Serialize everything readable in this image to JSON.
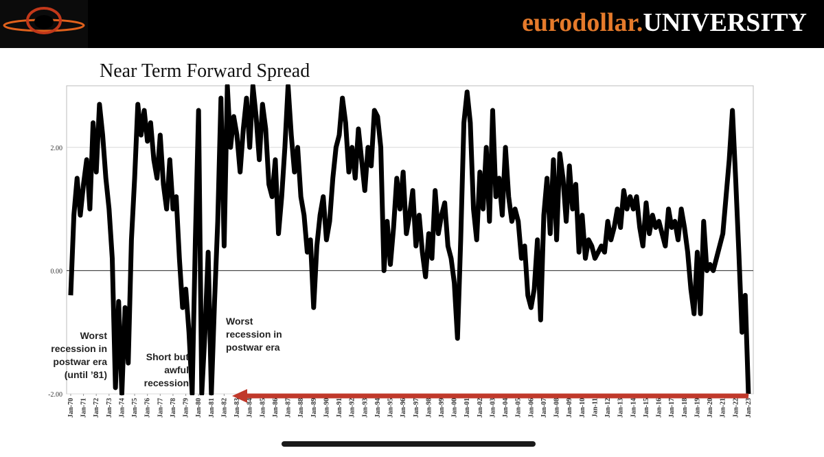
{
  "header": {
    "brand_prefix": "eurodollar.",
    "brand_suffix": "UNIVERSITY"
  },
  "chart_data": {
    "type": "line",
    "title": "Near Term Forward Spread",
    "color": "#000000",
    "grid": true,
    "xlim": [
      1969.68,
      2023.38
    ],
    "ylim": [
      -2,
      3
    ],
    "yticks": [
      {
        "value": -2,
        "label": "-2.00"
      },
      {
        "value": 0,
        "label": "0.00"
      },
      {
        "value": 2,
        "label": "2.00"
      }
    ],
    "xticks": [
      {
        "value": 1970,
        "label": "Jan-70"
      },
      {
        "value": 1971,
        "label": "Jan-71"
      },
      {
        "value": 1972,
        "label": "Jan-72"
      },
      {
        "value": 1973,
        "label": "Jan-73"
      },
      {
        "value": 1974,
        "label": "Jan-74"
      },
      {
        "value": 1975,
        "label": "Jan-75"
      },
      {
        "value": 1976,
        "label": "Jan-76"
      },
      {
        "value": 1977,
        "label": "Jan-77"
      },
      {
        "value": 1978,
        "label": "Jan-78"
      },
      {
        "value": 1979,
        "label": "Jan-79"
      },
      {
        "value": 1980,
        "label": "Jan-80"
      },
      {
        "value": 1981,
        "label": "Jan-81"
      },
      {
        "value": 1982,
        "label": "Jan-82"
      },
      {
        "value": 1983,
        "label": "Jan-83"
      },
      {
        "value": 1984,
        "label": "Jan-84"
      },
      {
        "value": 1985,
        "label": "Jan-85"
      },
      {
        "value": 1986,
        "label": "Jan-86"
      },
      {
        "value": 1987,
        "label": "Jan-87"
      },
      {
        "value": 1988,
        "label": "Jan-88"
      },
      {
        "value": 1989,
        "label": "Jan-89"
      },
      {
        "value": 1990,
        "label": "Jan-90"
      },
      {
        "value": 1991,
        "label": "Jan-91"
      },
      {
        "value": 1992,
        "label": "Jan-92"
      },
      {
        "value": 1993,
        "label": "Jan-93"
      },
      {
        "value": 1994,
        "label": "Jan-94"
      },
      {
        "value": 1995,
        "label": "Jan-95"
      },
      {
        "value": 1996,
        "label": "Jan-96"
      },
      {
        "value": 1997,
        "label": "Jan-97"
      },
      {
        "value": 1998,
        "label": "Jan-98"
      },
      {
        "value": 1999,
        "label": "Jan-99"
      },
      {
        "value": 2000,
        "label": "Jan-00"
      },
      {
        "value": 2001,
        "label": "Jan-01"
      },
      {
        "value": 2002,
        "label": "Jan-02"
      },
      {
        "value": 2003,
        "label": "Jan-03"
      },
      {
        "value": 2004,
        "label": "Jan-04"
      },
      {
        "value": 2005,
        "label": "Jan-05"
      },
      {
        "value": 2006,
        "label": "Jan-06"
      },
      {
        "value": 2007,
        "label": "Jan-07"
      },
      {
        "value": 2008,
        "label": "Jan-08"
      },
      {
        "value": 2009,
        "label": "Jan-09"
      },
      {
        "value": 2010,
        "label": "Jan-10"
      },
      {
        "value": 2011,
        "label": "Jan-11"
      },
      {
        "value": 2012,
        "label": "Jan-12"
      },
      {
        "value": 2013,
        "label": "Jan-13"
      },
      {
        "value": 2014,
        "label": "Jan-14"
      },
      {
        "value": 2015,
        "label": "Jan-15"
      },
      {
        "value": 2016,
        "label": "Jan-16"
      },
      {
        "value": 2017,
        "label": "Jan-17"
      },
      {
        "value": 2018,
        "label": "Jan-18"
      },
      {
        "value": 2019,
        "label": "Jan-19"
      },
      {
        "value": 2020,
        "label": "Jan-20"
      },
      {
        "value": 2021,
        "label": "Jan-21"
      },
      {
        "value": 2022,
        "label": "Jan-22"
      },
      {
        "value": 2023,
        "label": "Jan-23"
      }
    ],
    "x": [
      1970,
      1970.25,
      1970.5,
      1970.75,
      1971,
      1971.25,
      1971.5,
      1971.75,
      1972,
      1972.25,
      1972.5,
      1972.75,
      1973,
      1973.25,
      1973.5,
      1973.75,
      1974,
      1974.25,
      1974.5,
      1974.75,
      1975,
      1975.25,
      1975.5,
      1975.75,
      1976,
      1976.25,
      1976.5,
      1976.75,
      1977,
      1977.25,
      1977.5,
      1977.75,
      1978,
      1978.25,
      1978.5,
      1978.75,
      1979,
      1979.25,
      1979.5,
      1979.75,
      1980,
      1980.25,
      1980.5,
      1980.75,
      1981,
      1981.25,
      1981.5,
      1981.75,
      1982,
      1982.25,
      1982.5,
      1982.75,
      1983,
      1983.25,
      1983.5,
      1983.75,
      1984,
      1984.25,
      1984.5,
      1984.75,
      1985,
      1985.25,
      1985.5,
      1985.75,
      1986,
      1986.25,
      1986.5,
      1986.75,
      1987,
      1987.25,
      1987.5,
      1987.75,
      1988,
      1988.25,
      1988.5,
      1988.75,
      1989,
      1989.25,
      1989.5,
      1989.75,
      1990,
      1990.25,
      1990.5,
      1990.75,
      1991,
      1991.25,
      1991.5,
      1991.75,
      1992,
      1992.25,
      1992.5,
      1992.75,
      1993,
      1993.25,
      1993.5,
      1993.75,
      1994,
      1994.25,
      1994.5,
      1994.75,
      1995,
      1995.25,
      1995.5,
      1995.75,
      1996,
      1996.25,
      1996.5,
      1996.75,
      1997,
      1997.25,
      1997.5,
      1997.75,
      1998,
      1998.25,
      1998.5,
      1998.75,
      1999,
      1999.25,
      1999.5,
      1999.75,
      2000,
      2000.25,
      2000.5,
      2000.75,
      2001,
      2001.25,
      2001.5,
      2001.75,
      2002,
      2002.25,
      2002.5,
      2002.75,
      2003,
      2003.25,
      2003.5,
      2003.75,
      2004,
      2004.25,
      2004.5,
      2004.75,
      2005,
      2005.25,
      2005.5,
      2005.75,
      2006,
      2006.25,
      2006.5,
      2006.75,
      2007,
      2007.25,
      2007.5,
      2007.75,
      2008,
      2008.25,
      2008.5,
      2008.75,
      2009,
      2009.25,
      2009.5,
      2009.75,
      2010,
      2010.25,
      2010.5,
      2010.75,
      2011,
      2011.25,
      2011.5,
      2011.75,
      2012,
      2012.25,
      2012.5,
      2012.75,
      2013,
      2013.25,
      2013.5,
      2013.75,
      2014,
      2014.25,
      2014.5,
      2014.75,
      2015,
      2015.25,
      2015.5,
      2015.75,
      2016,
      2016.25,
      2016.5,
      2016.75,
      2017,
      2017.25,
      2017.5,
      2017.75,
      2018,
      2018.25,
      2018.5,
      2018.75,
      2019,
      2019.25,
      2019.5,
      2019.75,
      2020,
      2020.25,
      2020.5,
      2020.75,
      2021,
      2021.25,
      2021.5,
      2021.75,
      2022,
      2022.25,
      2022.5,
      2022.75,
      2023
    ],
    "values": [
      -0.4,
      0.9,
      1.5,
      0.9,
      1.4,
      1.8,
      1.0,
      2.4,
      1.6,
      2.7,
      2.2,
      1.5,
      1.0,
      0.2,
      -1.9,
      -0.5,
      -2.0,
      -0.6,
      -1.5,
      0.5,
      1.5,
      2.7,
      2.2,
      2.6,
      2.1,
      2.4,
      1.8,
      1.5,
      2.2,
      1.4,
      1.0,
      1.8,
      1.0,
      1.2,
      0.2,
      -0.6,
      -0.3,
      -1.0,
      -2.0,
      0.5,
      2.6,
      -2.0,
      -1.0,
      0.3,
      -2.0,
      -0.5,
      0.8,
      2.8,
      0.4,
      3.0,
      2.0,
      2.5,
      2.2,
      1.6,
      2.3,
      2.8,
      2.0,
      3.0,
      2.5,
      1.8,
      2.7,
      2.3,
      1.4,
      1.2,
      1.8,
      0.6,
      1.2,
      2.0,
      3.0,
      2.2,
      1.6,
      2.0,
      1.2,
      0.9,
      0.3,
      0.5,
      -0.6,
      0.4,
      0.9,
      1.2,
      0.5,
      0.8,
      1.5,
      2.0,
      2.2,
      2.8,
      2.4,
      1.6,
      2.0,
      1.5,
      2.3,
      1.8,
      1.3,
      2.0,
      1.7,
      2.6,
      2.5,
      2.0,
      0.0,
      0.8,
      0.1,
      0.7,
      1.5,
      1.0,
      1.6,
      0.6,
      0.9,
      1.3,
      0.4,
      0.9,
      0.3,
      -0.1,
      0.6,
      0.2,
      1.3,
      0.6,
      0.9,
      1.1,
      0.4,
      0.2,
      -0.2,
      -1.1,
      0.5,
      2.4,
      2.9,
      2.4,
      1.0,
      0.5,
      1.6,
      1.0,
      2.0,
      0.8,
      2.6,
      1.2,
      1.5,
      0.9,
      2.0,
      1.2,
      0.8,
      1.0,
      0.8,
      0.2,
      0.4,
      -0.4,
      -0.6,
      -0.3,
      0.5,
      -0.8,
      0.9,
      1.5,
      0.6,
      1.8,
      0.5,
      1.9,
      1.5,
      0.8,
      1.7,
      1.0,
      1.4,
      0.3,
      0.9,
      0.2,
      0.5,
      0.4,
      0.2,
      0.3,
      0.4,
      0.3,
      0.8,
      0.5,
      0.7,
      1.0,
      0.7,
      1.3,
      1.0,
      1.2,
      1.0,
      1.2,
      0.7,
      0.4,
      1.1,
      0.6,
      0.9,
      0.7,
      0.8,
      0.6,
      0.4,
      1.0,
      0.7,
      0.8,
      0.5,
      1.0,
      0.7,
      0.3,
      -0.3,
      -0.7,
      0.3,
      -0.7,
      0.8,
      0.0,
      0.1,
      0.0,
      0.2,
      0.4,
      0.6,
      1.2,
      1.8,
      2.6,
      1.5,
      0.3,
      -1.0,
      -0.4,
      -2.0
    ],
    "annotations": [
      [
        "Worst",
        "recession in",
        "postwar era",
        "(until ’81)"
      ],
      [
        "Short but",
        "awful",
        "recession"
      ],
      [
        "Worst",
        "recession in",
        "postwar era"
      ]
    ]
  }
}
